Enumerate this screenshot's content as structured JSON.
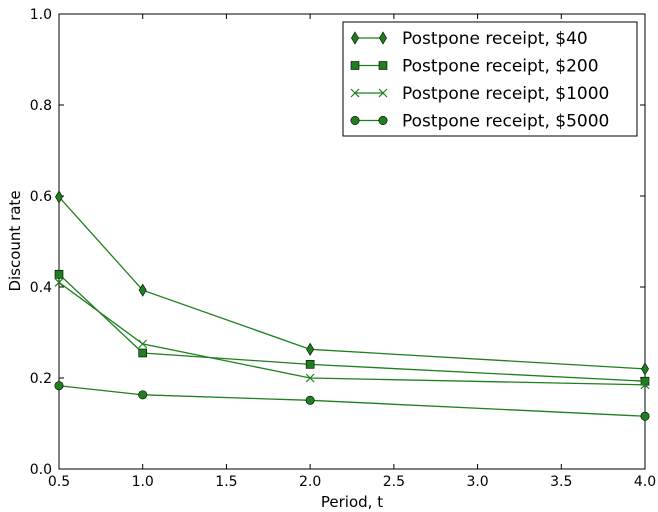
{
  "chart_data": {
    "type": "line",
    "title": "",
    "xlabel": "Period, t",
    "ylabel": "Discount rate",
    "xlim": [
      0.5,
      4.0
    ],
    "ylim": [
      0.0,
      1.0
    ],
    "xticks": [
      "0.5",
      "1.0",
      "1.5",
      "2.0",
      "2.5",
      "3.0",
      "3.5",
      "4.0"
    ],
    "yticks": [
      "0.0",
      "0.2",
      "0.4",
      "0.6",
      "0.8",
      "1.0"
    ],
    "grid": false,
    "legend_position": "top-right",
    "color": "#1f7f1f",
    "x": [
      0.5,
      1.0,
      2.0,
      4.0
    ],
    "series": [
      {
        "name": "Postpone receipt, $40",
        "marker": "diamond",
        "values": [
          0.598,
          0.393,
          0.263,
          0.22
        ]
      },
      {
        "name": "Postpone receipt, $200",
        "marker": "square",
        "values": [
          0.428,
          0.255,
          0.23,
          0.193
        ]
      },
      {
        "name": "Postpone receipt, $1000",
        "marker": "x",
        "values": [
          0.41,
          0.275,
          0.2,
          0.185
        ]
      },
      {
        "name": "Postpone receipt, $5000",
        "marker": "circle",
        "values": [
          0.183,
          0.163,
          0.151,
          0.116
        ]
      }
    ]
  }
}
